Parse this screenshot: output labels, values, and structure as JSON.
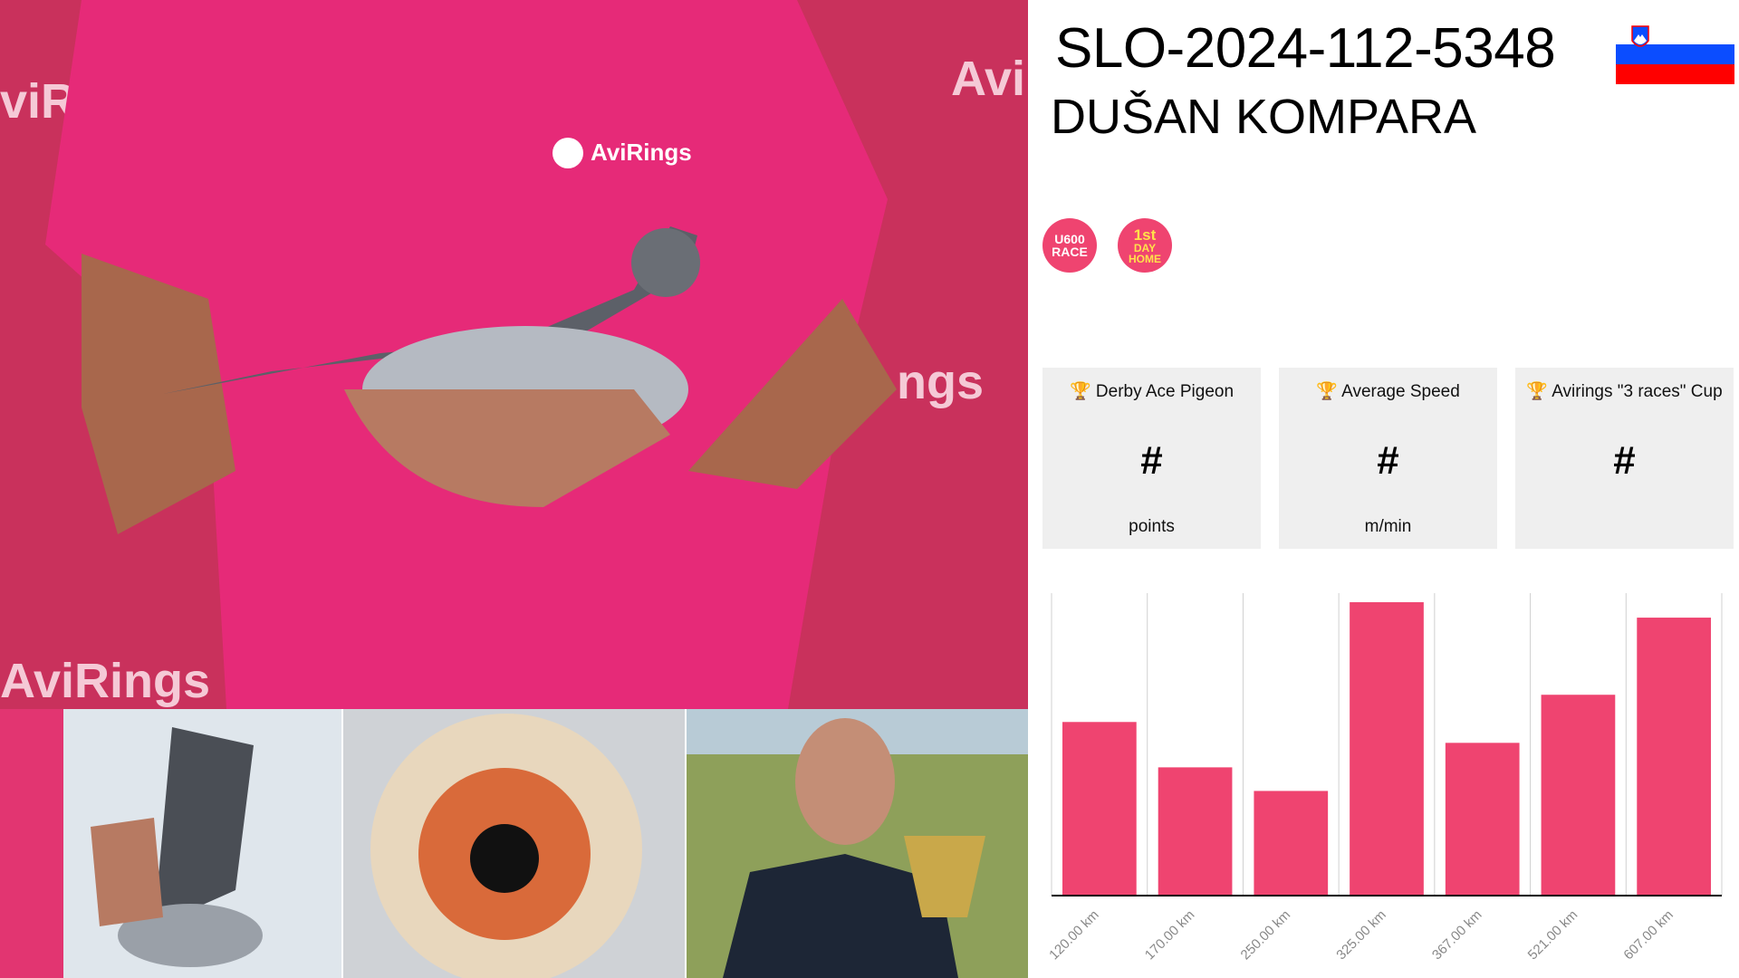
{
  "header": {
    "ring_number": "SLO-2024-112-5348",
    "owner": "DUŠAN KOMPARA",
    "country_flag": "slovenia-flag"
  },
  "badges": [
    {
      "lines": [
        "U600",
        "RACE"
      ],
      "color": "#ef4470"
    },
    {
      "lines": [
        "1st",
        "DAY",
        "HOME"
      ],
      "color": "#ef4470",
      "text_color": "#ffe14a"
    }
  ],
  "cards": [
    {
      "icon": "trophy-icon",
      "title": "Derby Ace Pigeon",
      "value": "#",
      "unit": "points"
    },
    {
      "icon": "trophy-icon",
      "title": "Average Speed",
      "value": "#",
      "unit": "m/min"
    },
    {
      "icon": "trophy-icon",
      "title": "Avirings \"3 races\" Cup",
      "value": "#",
      "unit": ""
    }
  ],
  "photos": {
    "main": {
      "watermark": "AviRings"
    },
    "thumbs": [
      "wing",
      "eye",
      "owner-with-trophy"
    ]
  },
  "chart_data": {
    "type": "bar",
    "categories": [
      "120.00 km",
      "170.00 km",
      "250.00 km",
      "325.00 km",
      "367.00 km",
      "521.00 km",
      "607.00 km"
    ],
    "values": [
      574,
      424,
      346,
      970,
      505,
      664,
      919
    ],
    "ylim": [
      0,
      991
    ],
    "grid": "vertical",
    "bar_color": "#ef4470",
    "title": "",
    "xlabel": "",
    "ylabel": ""
  }
}
